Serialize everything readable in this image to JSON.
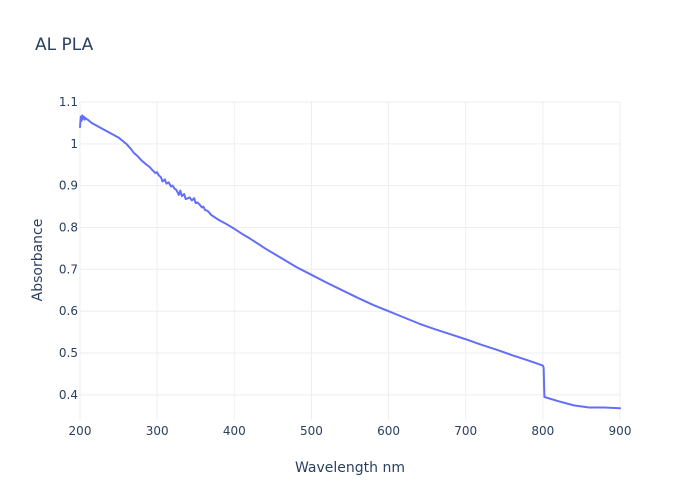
{
  "chart_data": {
    "type": "line",
    "title": "AL PLA",
    "xlabel": "Wavelength nm",
    "ylabel": "Absorbance",
    "xlim": [
      200,
      900
    ],
    "ylim": [
      0.34,
      1.1
    ],
    "x_ticks": [
      200,
      300,
      400,
      500,
      600,
      700,
      800,
      900
    ],
    "x_tick_labels": [
      "200",
      "300",
      "400",
      "500",
      "600",
      "700",
      "800",
      "900"
    ],
    "y_ticks": [
      0.4,
      0.5,
      0.6,
      0.7,
      0.8,
      0.9,
      1.0,
      1.1
    ],
    "y_tick_labels": [
      "0.4",
      "0.5",
      "0.6",
      "0.7",
      "0.8",
      "0.9",
      "1",
      "1.1"
    ],
    "grid": true,
    "colors": {
      "line": "#636efa",
      "text": "#2a3f5f",
      "grid": "#eeeeee"
    },
    "series": [
      {
        "x": [
          200,
          201,
          202,
          203,
          204,
          205,
          206,
          207,
          208,
          210,
          215,
          220,
          230,
          240,
          250,
          260,
          265,
          270,
          275,
          280,
          285,
          290,
          295,
          298,
          300,
          302,
          305,
          307,
          310,
          312,
          315,
          318,
          320,
          323,
          325,
          328,
          330,
          332,
          335,
          337,
          340,
          342,
          345,
          348,
          350,
          352,
          355,
          358,
          360,
          362,
          365,
          368,
          370,
          380,
          390,
          400,
          410,
          420,
          440,
          460,
          480,
          500,
          520,
          540,
          560,
          580,
          600,
          620,
          640,
          660,
          680,
          700,
          720,
          740,
          760,
          780,
          800,
          801,
          802,
          820,
          840,
          860,
          880,
          900
        ],
        "y": [
          1.04,
          1.065,
          1.055,
          1.068,
          1.06,
          1.065,
          1.058,
          1.062,
          1.06,
          1.058,
          1.05,
          1.045,
          1.035,
          1.025,
          1.015,
          1.0,
          0.99,
          0.978,
          0.97,
          0.96,
          0.952,
          0.945,
          0.935,
          0.93,
          0.932,
          0.925,
          0.92,
          0.91,
          0.915,
          0.905,
          0.908,
          0.898,
          0.9,
          0.892,
          0.89,
          0.878,
          0.888,
          0.875,
          0.88,
          0.868,
          0.87,
          0.872,
          0.865,
          0.87,
          0.858,
          0.86,
          0.855,
          0.848,
          0.85,
          0.842,
          0.84,
          0.835,
          0.83,
          0.818,
          0.808,
          0.797,
          0.785,
          0.774,
          0.75,
          0.728,
          0.706,
          0.687,
          0.668,
          0.65,
          0.632,
          0.615,
          0.6,
          0.585,
          0.57,
          0.557,
          0.545,
          0.533,
          0.52,
          0.508,
          0.495,
          0.483,
          0.47,
          0.465,
          0.395,
          0.385,
          0.375,
          0.37,
          0.37,
          0.368
        ]
      }
    ]
  }
}
